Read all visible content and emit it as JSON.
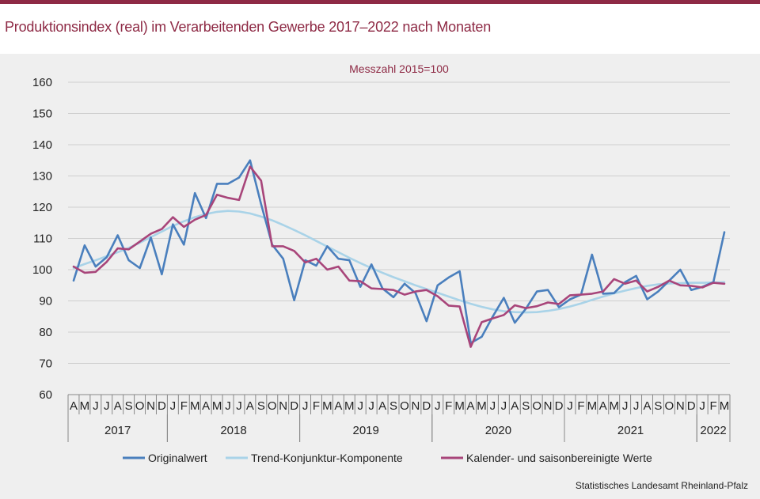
{
  "header": {
    "title": "Produktionsindex (real) im Verarbeitenden Gewerbe 2017–2022 nach Monaten"
  },
  "colors": {
    "accent": "#8e2a45",
    "original": "#4a7fbd",
    "trend": "#a9d3e8",
    "saison": "#a8457a"
  },
  "chart_data": {
    "type": "line",
    "title": "Produktionsindex (real) im Verarbeitenden Gewerbe 2017–2022 nach Monaten",
    "subtitle": "Messzahl  2015=100",
    "ylim": [
      60,
      160
    ],
    "yticks": [
      60,
      70,
      80,
      90,
      100,
      110,
      120,
      130,
      140,
      150,
      160
    ],
    "ygrid": true,
    "legend_position": "bottom",
    "month_labels": [
      "A",
      "M",
      "J",
      "J",
      "A",
      "S",
      "O",
      "N",
      "D",
      "J",
      "F",
      "M",
      "A",
      "M",
      "J",
      "J",
      "A",
      "S",
      "O",
      "N",
      "D",
      "J",
      "F",
      "M",
      "A",
      "M",
      "J",
      "J",
      "A",
      "S",
      "O",
      "N",
      "D",
      "J",
      "F",
      "M",
      "A",
      "M",
      "J",
      "J",
      "A",
      "S",
      "O",
      "N",
      "D",
      "J",
      "F",
      "M",
      "A",
      "M",
      "J",
      "J",
      "A",
      "S",
      "O",
      "N",
      "D",
      "J",
      "F",
      "M"
    ],
    "years": [
      {
        "label": "2017",
        "start": 0,
        "count": 9
      },
      {
        "label": "2018",
        "start": 9,
        "count": 12
      },
      {
        "label": "2019",
        "start": 21,
        "count": 12
      },
      {
        "label": "2020",
        "start": 33,
        "count": 12
      },
      {
        "label": "2021",
        "start": 45,
        "count": 12
      },
      {
        "label": "2022",
        "start": 57,
        "count": 3
      }
    ],
    "series": [
      {
        "name": "Originalwert",
        "color": "#4a7fbd",
        "values": [
          96.5,
          107.8,
          101.0,
          104.0,
          111.0,
          103.0,
          100.5,
          110.3,
          98.5,
          114.5,
          108.0,
          124.5,
          116.5,
          127.5,
          127.5,
          129.5,
          135.0,
          121.0,
          108.0,
          103.5,
          90.2,
          103.0,
          101.3,
          107.5,
          103.5,
          103.0,
          94.5,
          101.7,
          94.0,
          91.2,
          95.5,
          92.5,
          83.5,
          95.0,
          97.5,
          99.5,
          76.5,
          78.5,
          85.0,
          91.0,
          83.0,
          87.5,
          93.0,
          93.5,
          88.0,
          90.5,
          92.0,
          104.8,
          92.3,
          92.5,
          96.0,
          98.0,
          90.5,
          93.0,
          96.5,
          100.0,
          93.5,
          94.5,
          96.0,
          112.0
        ]
      },
      {
        "name": "Trend-Konjunktur-Komponente",
        "color": "#a9d3e8",
        "values": [
          100.5,
          101.8,
          103.0,
          104.3,
          105.6,
          107.0,
          108.6,
          110.4,
          112.2,
          114.0,
          115.5,
          116.8,
          117.8,
          118.5,
          118.8,
          118.6,
          118.0,
          117.0,
          115.8,
          114.3,
          112.7,
          111.0,
          109.2,
          107.4,
          105.6,
          103.8,
          102.1,
          100.5,
          99.0,
          97.6,
          96.3,
          95.0,
          93.8,
          92.6,
          91.4,
          90.2,
          89.1,
          88.1,
          87.3,
          86.7,
          86.4,
          86.3,
          86.4,
          86.8,
          87.4,
          88.2,
          89.2,
          90.3,
          91.4,
          92.4,
          93.3,
          94.1,
          94.8,
          95.3,
          95.6,
          95.7,
          95.8,
          95.8,
          95.9,
          96.0
        ]
      },
      {
        "name": "Kalender- und saisonbereinigte Werte",
        "color": "#a8457a",
        "values": [
          101.0,
          99.0,
          99.3,
          102.5,
          106.8,
          106.5,
          109.0,
          111.5,
          113.0,
          116.8,
          113.7,
          116.0,
          117.5,
          124.0,
          123.0,
          122.3,
          133.0,
          128.5,
          107.5,
          107.5,
          106.0,
          102.3,
          103.5,
          100.0,
          101.0,
          96.5,
          96.3,
          94.0,
          93.8,
          93.5,
          92.0,
          93.0,
          93.5,
          91.5,
          88.5,
          88.2,
          75.3,
          83.2,
          84.4,
          85.5,
          88.6,
          87.7,
          88.3,
          89.5,
          89.0,
          91.8,
          92.0,
          92.3,
          93.0,
          97.0,
          95.5,
          96.5,
          93.0,
          94.5,
          96.5,
          95.0,
          94.8,
          94.3,
          95.8,
          95.5
        ]
      }
    ],
    "source": "Statistisches Landesamt  Rheinland-Pfalz"
  }
}
